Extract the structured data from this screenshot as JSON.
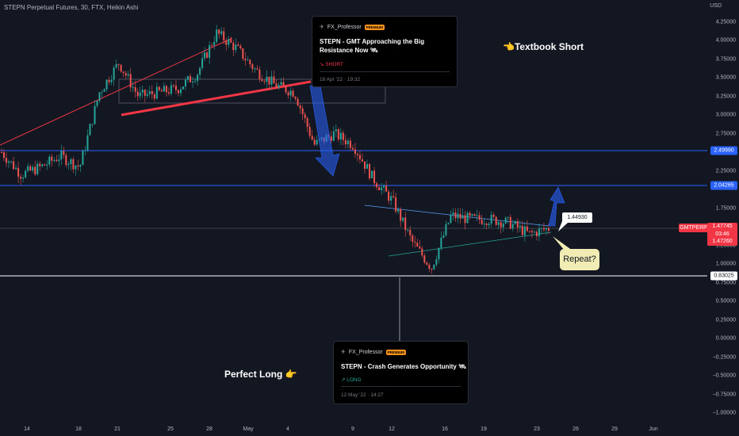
{
  "chart_title": "STEPN Perpetual Futures, 30, FTX, Heikin Ashi",
  "price_axis": {
    "unit": "USD",
    "ticks": [
      "4.25000",
      "4.00000",
      "3.75000",
      "3.50000",
      "3.25000",
      "3.00000",
      "2.75000",
      "2.25000",
      "1.75000",
      "1.25000",
      "1.00000",
      "0.75000",
      "0.50000",
      "0.25000",
      "0.00000",
      "−0.25000",
      "−0.50000",
      "−0.75000",
      "−1.00000"
    ],
    "tick_values": [
      4.25,
      4.0,
      3.75,
      3.5,
      3.25,
      3.0,
      2.75,
      2.25,
      1.75,
      1.25,
      1.0,
      0.75,
      0.5,
      0.25,
      0.0,
      -0.25,
      -0.5,
      -0.75,
      -1.0
    ]
  },
  "time_axis": {
    "labels": [
      "14",
      "18",
      "21",
      "25",
      "28",
      "May",
      "4",
      "9",
      "12",
      "16",
      "19",
      "23",
      "26",
      "29",
      "Jun"
    ]
  },
  "price_tags": {
    "level_1": "2.49990",
    "level_2": "2.04265",
    "level_3": "0.83025",
    "symbol": "GMTPERP",
    "last_price": "1.47745",
    "countdown": "03:46",
    "low_price": "1.47260"
  },
  "ideas": [
    {
      "author": "FX_Professor",
      "badge": "PREMIUM",
      "title": "STEPN - GMT Approaching the Big Resistance Now 🛰",
      "direction": "↘ SHORT",
      "date": "18 Apr '22 · 19:32"
    },
    {
      "author": "FX_Professor",
      "badge": "PREMIUM",
      "title": "STEPN - Crash Generates Opportunity 🛰",
      "direction": "↗ LONG",
      "date": "12 May '22 · 14:27"
    }
  ],
  "annotations": {
    "textbook_short": "👈Textbook Short",
    "perfect_long": "Perfect Long 👉",
    "price_callout": "1.44930",
    "repeat": "Repeat?"
  },
  "colors": {
    "background": "#131722",
    "up_candle": "#26a69a",
    "down_candle": "#ef5350",
    "level_line": "#2962ff",
    "trend_line": "#f23645"
  },
  "chart_data": {
    "type": "candlestick",
    "y_range": [
      -1.0,
      4.5
    ],
    "series_points": [
      {
        "x": "Apr 13",
        "close": 2.5
      },
      {
        "x": "Apr 14",
        "close": 2.2
      },
      {
        "x": "Apr 16",
        "close": 2.3
      },
      {
        "x": "Apr 17",
        "close": 2.45
      },
      {
        "x": "Apr 18",
        "close": 2.3
      },
      {
        "x": "Apr 19",
        "close": 3.3
      },
      {
        "x": "Apr 20",
        "close": 3.7
      },
      {
        "x": "Apr 21",
        "close": 3.25
      },
      {
        "x": "Apr 23",
        "close": 3.3
      },
      {
        "x": "Apr 25",
        "close": 3.35
      },
      {
        "x": "Apr 26",
        "close": 3.55
      },
      {
        "x": "Apr 28",
        "close": 4.1
      },
      {
        "x": "Apr 29",
        "close": 3.9
      },
      {
        "x": "Apr 30",
        "close": 3.6
      },
      {
        "x": "May 2",
        "close": 3.4
      },
      {
        "x": "May 4",
        "close": 3.3
      },
      {
        "x": "May 5",
        "close": 2.6
      },
      {
        "x": "May 6",
        "close": 2.75
      },
      {
        "x": "May 8",
        "close": 2.6
      },
      {
        "x": "May 9",
        "close": 2.15
      },
      {
        "x": "May 10",
        "close": 1.85
      },
      {
        "x": "May 11",
        "close": 1.3
      },
      {
        "x": "May 12",
        "close": 0.95
      },
      {
        "x": "May 13",
        "close": 1.65
      },
      {
        "x": "May 15",
        "close": 1.6
      },
      {
        "x": "May 17",
        "close": 1.6
      },
      {
        "x": "May 19",
        "close": 1.55
      },
      {
        "x": "May 21",
        "close": 1.4
      },
      {
        "x": "May 23",
        "close": 1.48
      }
    ]
  }
}
